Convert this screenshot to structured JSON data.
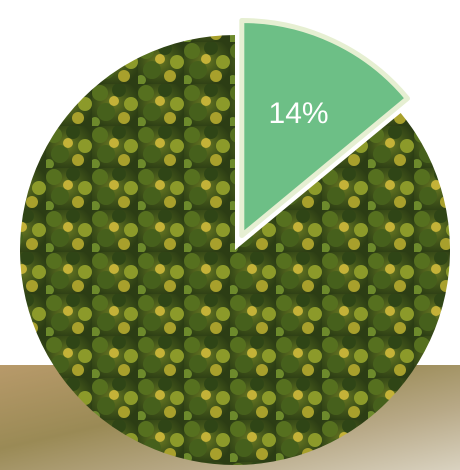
{
  "chart_data": {
    "type": "pie",
    "values": [
      14,
      86
    ],
    "value_labels": [
      "14%",
      null
    ],
    "colors": [
      "#6dbf86",
      "#3f5219"
    ],
    "exploded": [
      true,
      false
    ]
  }
}
